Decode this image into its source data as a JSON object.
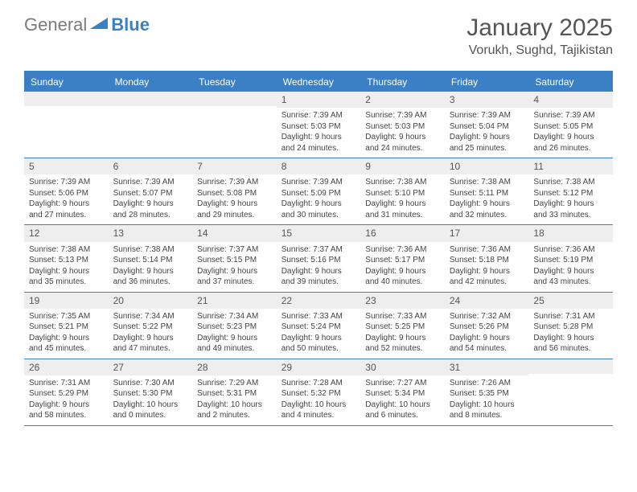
{
  "logo": {
    "general": "General",
    "blue": "Blue"
  },
  "title": "January 2025",
  "location": "Vorukh, Sughd, Tajikistan",
  "colors": {
    "accent": "#3b7fc4",
    "daynum_bg": "#eeeeee",
    "text": "#444444",
    "title_text": "#555555"
  },
  "days_of_week": [
    "Sunday",
    "Monday",
    "Tuesday",
    "Wednesday",
    "Thursday",
    "Friday",
    "Saturday"
  ],
  "first_weekday_index": 3,
  "days": [
    {
      "n": 1,
      "sunrise": "7:39 AM",
      "sunset": "5:03 PM",
      "daylight": "9 hours and 24 minutes."
    },
    {
      "n": 2,
      "sunrise": "7:39 AM",
      "sunset": "5:03 PM",
      "daylight": "9 hours and 24 minutes."
    },
    {
      "n": 3,
      "sunrise": "7:39 AM",
      "sunset": "5:04 PM",
      "daylight": "9 hours and 25 minutes."
    },
    {
      "n": 4,
      "sunrise": "7:39 AM",
      "sunset": "5:05 PM",
      "daylight": "9 hours and 26 minutes."
    },
    {
      "n": 5,
      "sunrise": "7:39 AM",
      "sunset": "5:06 PM",
      "daylight": "9 hours and 27 minutes."
    },
    {
      "n": 6,
      "sunrise": "7:39 AM",
      "sunset": "5:07 PM",
      "daylight": "9 hours and 28 minutes."
    },
    {
      "n": 7,
      "sunrise": "7:39 AM",
      "sunset": "5:08 PM",
      "daylight": "9 hours and 29 minutes."
    },
    {
      "n": 8,
      "sunrise": "7:39 AM",
      "sunset": "5:09 PM",
      "daylight": "9 hours and 30 minutes."
    },
    {
      "n": 9,
      "sunrise": "7:38 AM",
      "sunset": "5:10 PM",
      "daylight": "9 hours and 31 minutes."
    },
    {
      "n": 10,
      "sunrise": "7:38 AM",
      "sunset": "5:11 PM",
      "daylight": "9 hours and 32 minutes."
    },
    {
      "n": 11,
      "sunrise": "7:38 AM",
      "sunset": "5:12 PM",
      "daylight": "9 hours and 33 minutes."
    },
    {
      "n": 12,
      "sunrise": "7:38 AM",
      "sunset": "5:13 PM",
      "daylight": "9 hours and 35 minutes."
    },
    {
      "n": 13,
      "sunrise": "7:38 AM",
      "sunset": "5:14 PM",
      "daylight": "9 hours and 36 minutes."
    },
    {
      "n": 14,
      "sunrise": "7:37 AM",
      "sunset": "5:15 PM",
      "daylight": "9 hours and 37 minutes."
    },
    {
      "n": 15,
      "sunrise": "7:37 AM",
      "sunset": "5:16 PM",
      "daylight": "9 hours and 39 minutes."
    },
    {
      "n": 16,
      "sunrise": "7:36 AM",
      "sunset": "5:17 PM",
      "daylight": "9 hours and 40 minutes."
    },
    {
      "n": 17,
      "sunrise": "7:36 AM",
      "sunset": "5:18 PM",
      "daylight": "9 hours and 42 minutes."
    },
    {
      "n": 18,
      "sunrise": "7:36 AM",
      "sunset": "5:19 PM",
      "daylight": "9 hours and 43 minutes."
    },
    {
      "n": 19,
      "sunrise": "7:35 AM",
      "sunset": "5:21 PM",
      "daylight": "9 hours and 45 minutes."
    },
    {
      "n": 20,
      "sunrise": "7:34 AM",
      "sunset": "5:22 PM",
      "daylight": "9 hours and 47 minutes."
    },
    {
      "n": 21,
      "sunrise": "7:34 AM",
      "sunset": "5:23 PM",
      "daylight": "9 hours and 49 minutes."
    },
    {
      "n": 22,
      "sunrise": "7:33 AM",
      "sunset": "5:24 PM",
      "daylight": "9 hours and 50 minutes."
    },
    {
      "n": 23,
      "sunrise": "7:33 AM",
      "sunset": "5:25 PM",
      "daylight": "9 hours and 52 minutes."
    },
    {
      "n": 24,
      "sunrise": "7:32 AM",
      "sunset": "5:26 PM",
      "daylight": "9 hours and 54 minutes."
    },
    {
      "n": 25,
      "sunrise": "7:31 AM",
      "sunset": "5:28 PM",
      "daylight": "9 hours and 56 minutes."
    },
    {
      "n": 26,
      "sunrise": "7:31 AM",
      "sunset": "5:29 PM",
      "daylight": "9 hours and 58 minutes."
    },
    {
      "n": 27,
      "sunrise": "7:30 AM",
      "sunset": "5:30 PM",
      "daylight": "10 hours and 0 minutes."
    },
    {
      "n": 28,
      "sunrise": "7:29 AM",
      "sunset": "5:31 PM",
      "daylight": "10 hours and 2 minutes."
    },
    {
      "n": 29,
      "sunrise": "7:28 AM",
      "sunset": "5:32 PM",
      "daylight": "10 hours and 4 minutes."
    },
    {
      "n": 30,
      "sunrise": "7:27 AM",
      "sunset": "5:34 PM",
      "daylight": "10 hours and 6 minutes."
    },
    {
      "n": 31,
      "sunrise": "7:26 AM",
      "sunset": "5:35 PM",
      "daylight": "10 hours and 8 minutes."
    }
  ],
  "labels": {
    "sunrise": "Sunrise: ",
    "sunset": "Sunset: ",
    "daylight": "Daylight: "
  }
}
